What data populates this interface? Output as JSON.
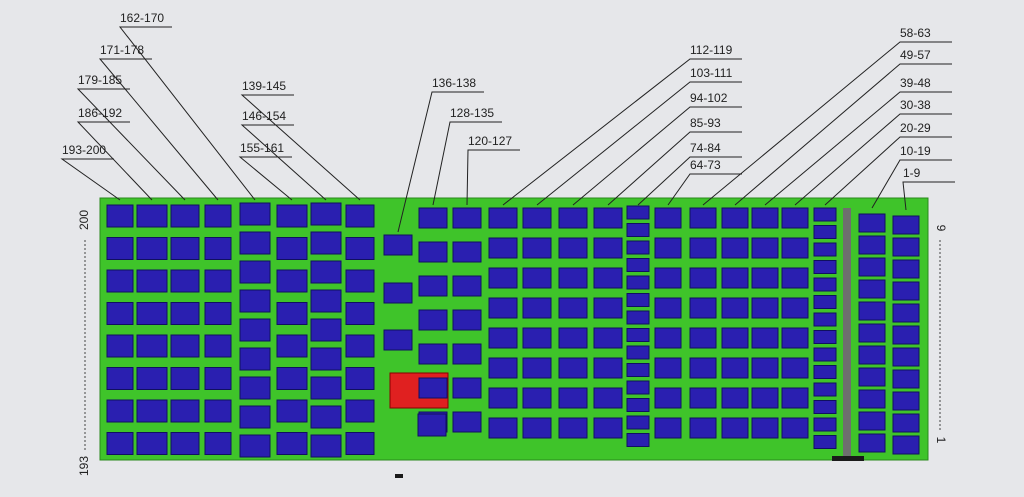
{
  "labels": [
    "162-170",
    "171-178",
    "179-185",
    "186-192",
    "193-200",
    "139-145",
    "146-154",
    "155-161",
    "136-138",
    "128-135",
    "120-127",
    "112-119",
    "103-111",
    "94-102",
    "85-93",
    "74-84",
    "64-73",
    "58-63",
    "49-57",
    "39-48",
    "30-38",
    "20-29",
    "10-19",
    "1-9"
  ],
  "side_labels": {
    "left_top": "200",
    "left_bottom": "193",
    "right_top": "9",
    "right_bottom": "1"
  }
}
